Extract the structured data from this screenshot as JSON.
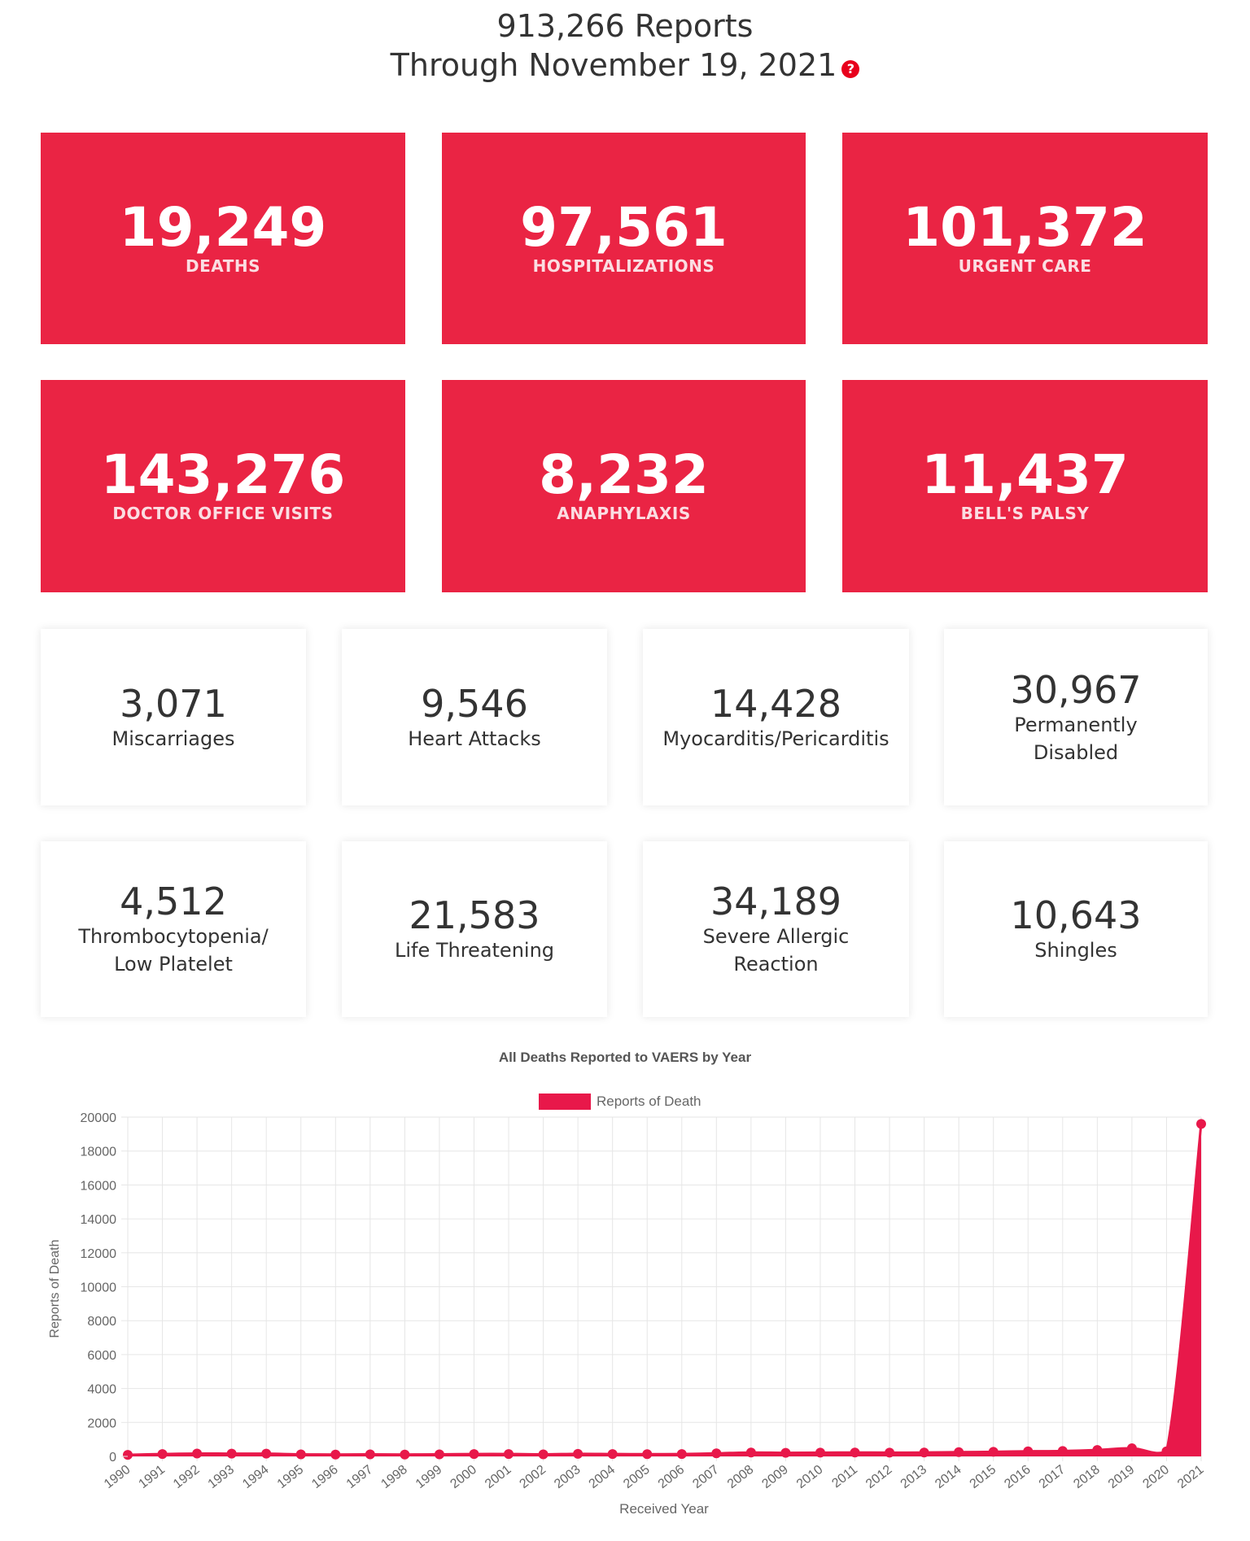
{
  "header": {
    "reports_line": "913,266 Reports",
    "through_line": "Through November 19, 2021",
    "help_icon": "question-icon"
  },
  "red_stats": [
    {
      "value": "19,249",
      "label": "DEATHS"
    },
    {
      "value": "97,561",
      "label": "HOSPITALIZATIONS"
    },
    {
      "value": "101,372",
      "label": "URGENT CARE"
    },
    {
      "value": "143,276",
      "label": "DOCTOR OFFICE VISITS"
    },
    {
      "value": "8,232",
      "label": "ANAPHYLAXIS"
    },
    {
      "value": "11,437",
      "label": "BELL'S PALSY"
    }
  ],
  "white_stats": [
    {
      "value": "3,071",
      "label": "Miscarriages"
    },
    {
      "value": "9,546",
      "label": "Heart Attacks"
    },
    {
      "value": "14,428",
      "label": "Myocarditis/Pericarditis"
    },
    {
      "value": "30,967",
      "label": "Permanently\nDisabled"
    },
    {
      "value": "4,512",
      "label": "Thrombocytopenia/\nLow Platelet"
    },
    {
      "value": "21,583",
      "label": "Life Threatening"
    },
    {
      "value": "34,189",
      "label": "Severe Allergic\nReaction"
    },
    {
      "value": "10,643",
      "label": "Shingles"
    }
  ],
  "colors": {
    "accent": "#ea2444",
    "series": "#e8184a",
    "grid": "#e6e6e6"
  },
  "chart_data": {
    "type": "area",
    "title": "All Deaths Reported to VAERS by Year",
    "xlabel": "Received Year",
    "ylabel": "Reports of Death",
    "ylim": [
      0,
      20000
    ],
    "yticks": [
      0,
      2000,
      4000,
      6000,
      8000,
      10000,
      12000,
      14000,
      16000,
      18000,
      20000
    ],
    "grid": true,
    "legend_position": "top",
    "categories": [
      "1990",
      "1991",
      "1992",
      "1993",
      "1994",
      "1995",
      "1996",
      "1997",
      "1998",
      "1999",
      "2000",
      "2001",
      "2002",
      "2003",
      "2004",
      "2005",
      "2006",
      "2007",
      "2008",
      "2009",
      "2010",
      "2011",
      "2012",
      "2013",
      "2014",
      "2015",
      "2016",
      "2017",
      "2018",
      "2019",
      "2020",
      "2021"
    ],
    "series": [
      {
        "name": "Reports of Death",
        "values": [
          90,
          140,
          170,
          160,
          160,
          120,
          110,
          120,
          110,
          120,
          140,
          140,
          120,
          150,
          140,
          130,
          140,
          180,
          230,
          210,
          220,
          230,
          220,
          230,
          250,
          270,
          300,
          320,
          380,
          480,
          300,
          19600
        ]
      }
    ]
  }
}
